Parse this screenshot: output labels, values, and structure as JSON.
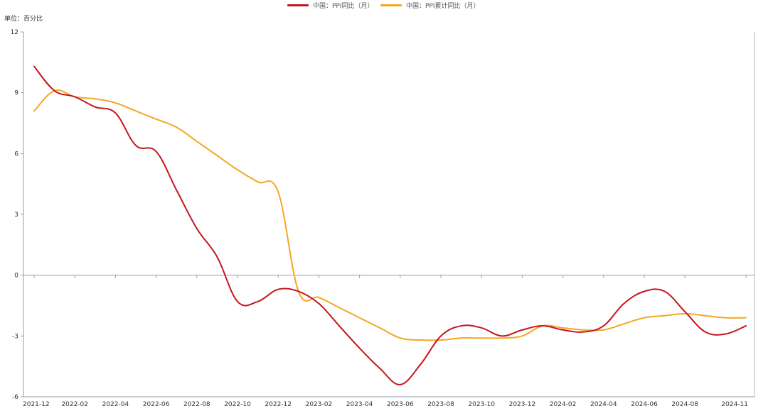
{
  "legend": [
    {
      "label": "中国：PPI同比（月）",
      "color": "#c4161c"
    },
    {
      "label": "中国：PPI累计同比（月）",
      "color": "#f5a623"
    }
  ],
  "unit_label": "单位：百分比",
  "chart_data": {
    "type": "line",
    "title": "",
    "xlabel": "",
    "ylabel": "单位：百分比",
    "x_ticks": [
      "2021-12",
      "2022-02",
      "2022-04",
      "2022-06",
      "2022-08",
      "2022-10",
      "2022-12",
      "2023-02",
      "2023-04",
      "2023-06",
      "2023-08",
      "2023-10",
      "2023-12",
      "2024-02",
      "2024-04",
      "2024-06",
      "2024-08",
      "2024-11"
    ],
    "y_ticks": [
      12,
      9,
      6,
      3,
      0,
      -3,
      -6
    ],
    "ylim": [
      -6,
      12
    ],
    "grid": false,
    "legend_position": "top-center",
    "x": [
      "2021-12",
      "2022-01",
      "2022-02",
      "2022-03",
      "2022-04",
      "2022-05",
      "2022-06",
      "2022-07",
      "2022-08",
      "2022-09",
      "2022-10",
      "2022-11",
      "2022-12",
      "2023-01",
      "2023-02",
      "2023-03",
      "2023-04",
      "2023-05",
      "2023-06",
      "2023-07",
      "2023-08",
      "2023-09",
      "2023-10",
      "2023-11",
      "2023-12",
      "2024-01",
      "2024-02",
      "2024-03",
      "2024-04",
      "2024-05",
      "2024-06",
      "2024-07",
      "2024-08",
      "2024-09",
      "2024-10",
      "2024-11"
    ],
    "series": [
      {
        "name": "中国：PPI同比（月）",
        "color": "#c4161c",
        "values": [
          10.3,
          9.1,
          8.8,
          8.3,
          8.0,
          6.4,
          6.1,
          4.2,
          2.3,
          0.9,
          -1.3,
          -1.3,
          -0.7,
          -0.8,
          -1.4,
          -2.5,
          -3.6,
          -4.6,
          -5.4,
          -4.4,
          -3.0,
          -2.5,
          -2.6,
          -3.0,
          -2.7,
          -2.5,
          -2.7,
          -2.8,
          -2.5,
          -1.4,
          -0.8,
          -0.8,
          -1.8,
          -2.8,
          -2.9,
          -2.5
        ]
      },
      {
        "name": "中国：PPI累计同比（月）",
        "color": "#f5a623",
        "values": [
          8.1,
          9.1,
          8.8,
          8.7,
          8.5,
          8.1,
          7.7,
          7.3,
          6.6,
          5.9,
          5.2,
          4.6,
          4.1,
          -0.8,
          -1.1,
          -1.6,
          -2.1,
          -2.6,
          -3.1,
          -3.2,
          -3.2,
          -3.1,
          -3.1,
          -3.1,
          -3.0,
          -2.5,
          -2.6,
          -2.7,
          -2.7,
          -2.4,
          -2.1,
          -2.0,
          -1.9,
          -2.0,
          -2.1,
          -2.1
        ]
      }
    ]
  }
}
